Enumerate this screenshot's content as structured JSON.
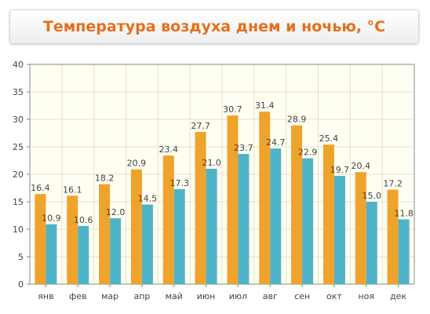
{
  "title": "Температура воздуха днем и ночью, °C",
  "colors": {
    "day": "#f0a32b",
    "night": "#4fb3c7",
    "title": "#e46f1c",
    "plot_bg": "#fffef2",
    "grid": "#e6e2c8"
  },
  "chart_data": {
    "type": "bar",
    "title": "Температура воздуха днем и ночью, °C",
    "categories": [
      "янв",
      "фев",
      "мар",
      "апр",
      "май",
      "июн",
      "июл",
      "авг",
      "сен",
      "окт",
      "ноя",
      "дек"
    ],
    "series": [
      {
        "values": [
          16.4,
          16.1,
          18.2,
          20.9,
          23.4,
          27.7,
          30.7,
          31.4,
          28.9,
          25.4,
          20.4,
          17.2
        ]
      },
      {
        "values": [
          10.9,
          10.6,
          12.0,
          14.5,
          17.3,
          21.0,
          23.7,
          24.7,
          22.9,
          19.7,
          15.0,
          11.8
        ]
      }
    ],
    "yticks": [
      "0",
      "5",
      "10",
      "15",
      "20",
      "25",
      "30",
      "35",
      "40"
    ],
    "ylim": [
      0,
      40
    ],
    "grid": true,
    "legend": false
  }
}
